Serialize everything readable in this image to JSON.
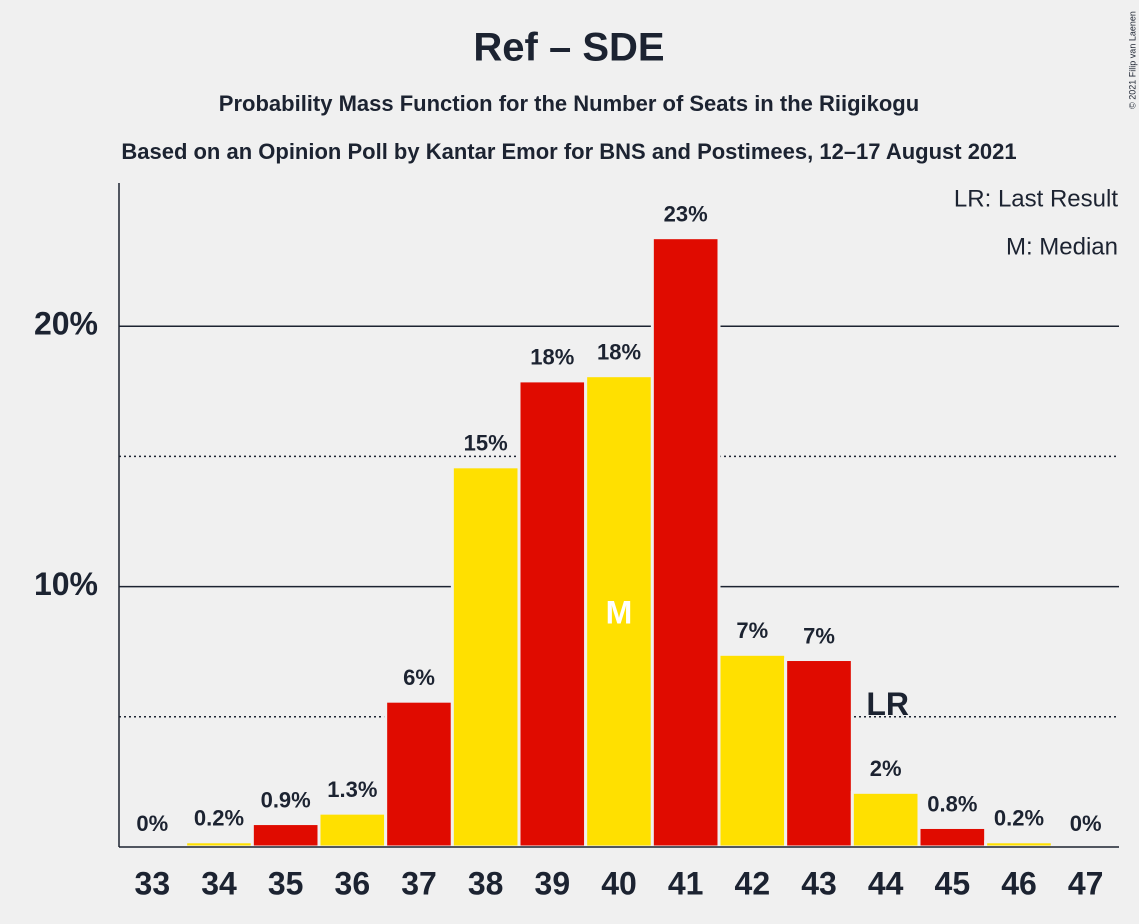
{
  "chart_data": {
    "type": "bar",
    "title": "Ref – SDE",
    "subtitles": [
      "Probability Mass Function for the Number of Seats in the Riigikogu",
      "Based on an Opinion Poll by Kantar Emor for BNS and Postimees, 12–17 August 2021"
    ],
    "categories": [
      "33",
      "34",
      "35",
      "36",
      "37",
      "38",
      "39",
      "40",
      "41",
      "42",
      "43",
      "44",
      "45",
      "46",
      "47"
    ],
    "values": [
      0,
      0.2,
      0.9,
      1.3,
      5.6,
      14.6,
      17.9,
      18.1,
      23.4,
      7.4,
      7.2,
      2.1,
      0.75,
      0.2,
      0
    ],
    "value_labels": [
      "0%",
      "0.2%",
      "0.9%",
      "1.3%",
      "6%",
      "15%",
      "18%",
      "18%",
      "23%",
      "7%",
      "7%",
      "2%",
      "0.8%",
      "0.2%",
      "0%"
    ],
    "colors": [
      "#e00b00",
      "#ffe000",
      "#e00b00",
      "#ffe000",
      "#e00b00",
      "#ffe000",
      "#e00b00",
      "#ffe000",
      "#e00b00",
      "#ffe000",
      "#e00b00",
      "#ffe000",
      "#e00b00",
      "#ffe000",
      "#e00b00"
    ],
    "ylim": [
      0,
      25.5
    ],
    "yticks": [
      {
        "value": 10,
        "label": "10%"
      },
      {
        "value": 20,
        "label": "20%"
      }
    ],
    "minor_gridlines": [
      5,
      15
    ],
    "grid": true,
    "annotations": [
      {
        "label": "M",
        "category": "40"
      },
      {
        "label": "LR",
        "category": "44"
      }
    ],
    "legend": [
      "LR: Last Result",
      "M: Median"
    ],
    "legend_position": "upper right",
    "copyright": "© 2021 Filip van Laenen"
  }
}
